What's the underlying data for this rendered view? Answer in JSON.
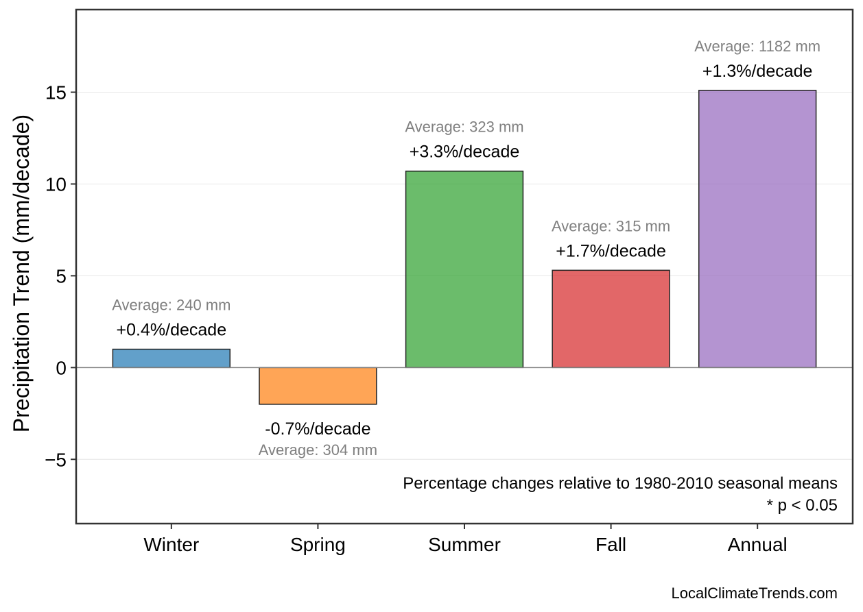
{
  "chart_data": {
    "type": "bar",
    "categories": [
      "Winter",
      "Spring",
      "Summer",
      "Fall",
      "Annual"
    ],
    "values": [
      1.0,
      -2.0,
      10.7,
      5.3,
      15.1
    ],
    "pct_labels": [
      "+0.4%/decade",
      "-0.7%/decade",
      "+3.3%/decade",
      "+1.7%/decade",
      "+1.3%/decade"
    ],
    "avg_labels": [
      "Average: 240 mm",
      "Average: 304 mm",
      "Average: 323 mm",
      "Average: 315 mm",
      "Average: 1182 mm"
    ],
    "colors": [
      "#1f77b4",
      "#ff7f0e",
      "#2ca02c",
      "#d62728",
      "#9467bd"
    ],
    "ylabel": "Precipitation Trend (mm/decade)",
    "xlabel": "",
    "ylim": [
      -8.5,
      19.5
    ],
    "yticks": [
      -5,
      0,
      5,
      10,
      15
    ],
    "ytick_labels": [
      "−5",
      "0",
      "5",
      "10",
      "15"
    ],
    "grid": true,
    "notes": [
      "Percentage changes relative to 1980-2010 seasonal means",
      "* p < 0.05"
    ],
    "source": "LocalClimateTrends.com"
  }
}
